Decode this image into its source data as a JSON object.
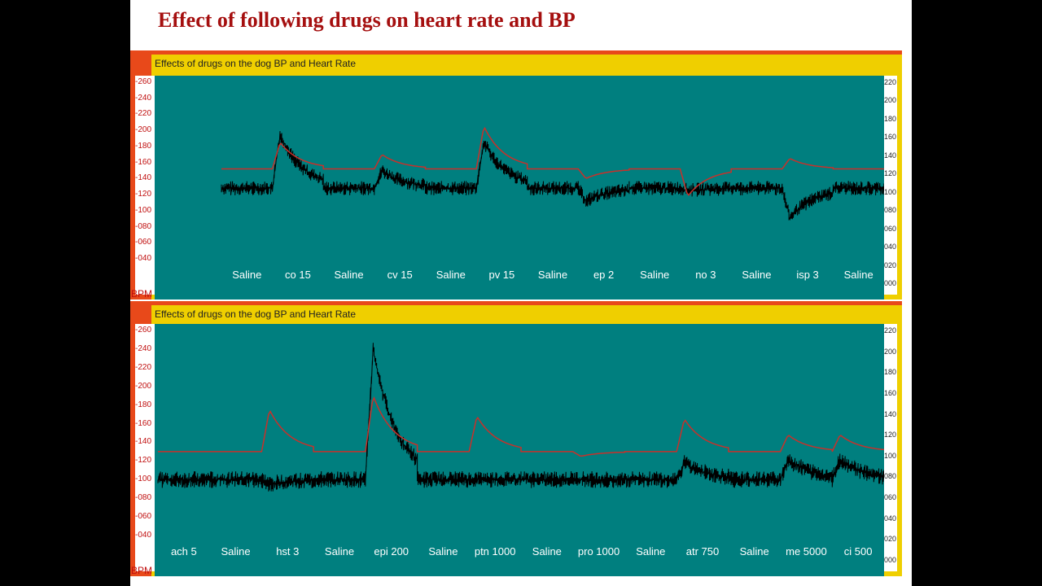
{
  "slide": {
    "title": "Effect of following drugs on heart rate and BP"
  },
  "panels": [
    {
      "window_title": "Effects of drugs on the dog BP and Heart Rate",
      "left_unit": "BPM"
    },
    {
      "window_title": "Effects of drugs on the dog BP and Heart Rate",
      "left_unit": "BPM"
    }
  ],
  "chart_data": [
    {
      "type": "line",
      "title": "Effects of drugs on the dog BP and Heart Rate",
      "left_axis": {
        "label": "BPM",
        "ticks": [
          "260",
          "240",
          "220",
          "200",
          "180",
          "160",
          "140",
          "120",
          "100",
          "080",
          "060",
          "040"
        ],
        "range": [
          40,
          260
        ]
      },
      "right_axis": {
        "ticks": [
          "220",
          "200",
          "180",
          "160",
          "140",
          "120",
          "100",
          "080",
          "060",
          "040",
          "020",
          "000"
        ],
        "range": [
          0,
          220
        ]
      },
      "segments": [
        "Saline",
        "co 15",
        "Saline",
        "cv 15",
        "Saline",
        "pv 15",
        "Saline",
        "ep 2",
        "Saline",
        "no 3",
        "Saline",
        "isp 3",
        "Saline"
      ],
      "series": [
        {
          "values": [
            128,
            195,
            128,
            150,
            128,
            185,
            128,
            112,
            128,
            125,
            128,
            90,
            128
          ]
        },
        {
          "values": [
            152,
            185,
            152,
            170,
            152,
            205,
            152,
            140,
            152,
            118,
            152,
            165,
            152
          ]
        }
      ],
      "colors": {
        "bp": "#000000",
        "hr": "#c8302a",
        "background": "#007f7f"
      }
    },
    {
      "type": "line",
      "title": "Effects of drugs on the dog BP and Heart Rate",
      "left_axis": {
        "label": "BPM",
        "ticks": [
          "260",
          "240",
          "220",
          "200",
          "180",
          "160",
          "140",
          "120",
          "100",
          "080",
          "060",
          "040"
        ],
        "range": [
          40,
          260
        ]
      },
      "right_axis": {
        "ticks": [
          "220",
          "200",
          "180",
          "160",
          "140",
          "120",
          "100",
          "080",
          "060",
          "040",
          "020",
          "000"
        ],
        "range": [
          0,
          220
        ]
      },
      "segments": [
        "ach 5",
        "Saline",
        "hst 3",
        "Saline",
        "epi 200",
        "Saline",
        "ptn 1000",
        "Saline",
        "pro 1000",
        "Saline",
        "atr 750",
        "Saline",
        "me 5000",
        "ci 500"
      ],
      "series": [
        {
          "values": [
            100,
            128,
            95,
            128,
            240,
            128,
            100,
            128,
            100,
            128,
            118,
            128,
            122,
            122
          ]
        },
        {
          "values": [
            130,
            152,
            175,
            152,
            190,
            152,
            168,
            152,
            125,
            152,
            165,
            152,
            148,
            148
          ]
        }
      ],
      "colors": {
        "bp": "#000000",
        "hr": "#c8302a",
        "background": "#007f7f"
      }
    }
  ]
}
